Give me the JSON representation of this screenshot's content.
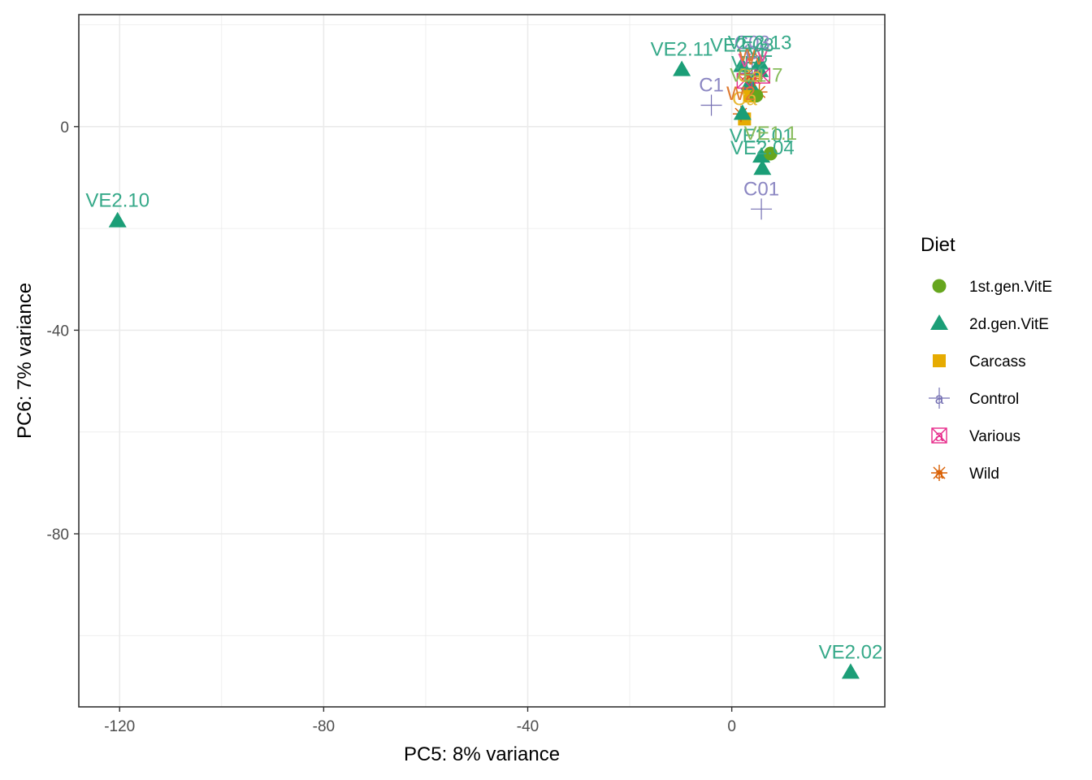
{
  "chart_data": {
    "type": "scatter",
    "xlabel": "PC5: 8% variance",
    "ylabel": "PC6: 7% variance",
    "xlim": [
      -128,
      30
    ],
    "ylim": [
      -114,
      22
    ],
    "x_ticks": [
      -120,
      -80,
      -40,
      0
    ],
    "y_ticks": [
      0,
      -40,
      -80
    ],
    "grid": true,
    "legend": {
      "title": "Diet",
      "placement": "right",
      "entries": [
        {
          "name": "1st.gen.VitE",
          "shape": "circle",
          "color": "#66a61e"
        },
        {
          "name": "2d.gen.VitE",
          "shape": "triangle",
          "color": "#1b9e77"
        },
        {
          "name": "Carcass",
          "shape": "square",
          "color": "#e6ab02"
        },
        {
          "name": "Control",
          "shape": "plus",
          "color": "#7570b3"
        },
        {
          "name": "Various",
          "shape": "boxx",
          "color": "#e7298a"
        },
        {
          "name": "Wild",
          "shape": "asterisk",
          "color": "#d95f02"
        }
      ]
    },
    "points": [
      {
        "x": -120.4,
        "y": -18.5,
        "diet": "2d.gen.VitE",
        "label": "VE2.10"
      },
      {
        "x": 23.3,
        "y": -107.2,
        "diet": "2d.gen.VitE",
        "label": "VE2.02"
      },
      {
        "x": -9.8,
        "y": 11.2,
        "diet": "2d.gen.VitE",
        "label": "VE2.11"
      },
      {
        "x": 5.8,
        "y": -16.2,
        "diet": "Control",
        "label": "C01"
      },
      {
        "x": 6.0,
        "y": -8.2,
        "diet": "2d.gen.VitE",
        "label": "VE2.04"
      },
      {
        "x": 5.8,
        "y": -5.8,
        "diet": "2d.gen.VitE",
        "label": "VE2.01"
      },
      {
        "x": 7.6,
        "y": -5.3,
        "diet": "1st.gen.VitE",
        "label": "VE1.1"
      },
      {
        "x": 2.5,
        "y": 1.5,
        "diet": "Carcass",
        "label": "Ca"
      },
      {
        "x": 1.8,
        "y": 2.5,
        "diet": "Wild",
        "label": "W2"
      },
      {
        "x": 2.1,
        "y": 2.6,
        "diet": "2d.gen.VitE",
        "label": ""
      },
      {
        "x": -4.0,
        "y": 4.2,
        "diet": "Control",
        "label": "C1"
      },
      {
        "x": 3.5,
        "y": 6.0,
        "diet": "Carcass",
        "label": "Ca"
      },
      {
        "x": 5.4,
        "y": 6.8,
        "diet": "Wild",
        "label": ""
      },
      {
        "x": 4.8,
        "y": 6.1,
        "diet": "1st.gen.VitE",
        "label": "VE1.7"
      },
      {
        "x": 3.5,
        "y": 8.5,
        "diet": "2d.gen.VitE",
        "label": "VE2"
      },
      {
        "x": 2.5,
        "y": 9.0,
        "diet": "Various",
        "label": "V"
      },
      {
        "x": 4.5,
        "y": 9.5,
        "diet": "Wild",
        "label": "W"
      },
      {
        "x": 4.0,
        "y": 10.5,
        "diet": "Control",
        "label": "C"
      },
      {
        "x": 5.5,
        "y": 11.0,
        "diet": "2d.gen.VitE",
        "label": "VE"
      },
      {
        "x": 3.0,
        "y": 10.2,
        "diet": "Wild",
        "label": "W"
      },
      {
        "x": 6.0,
        "y": 10.0,
        "diet": "Various",
        "label": "V"
      },
      {
        "x": 2.0,
        "y": 12.0,
        "diet": "2d.gen.VitE",
        "label": "VE2.08"
      },
      {
        "x": 4.0,
        "y": 12.5,
        "diet": "Control",
        "label": "C03"
      },
      {
        "x": 5.5,
        "y": 12.5,
        "diet": "2d.gen.VitE",
        "label": "VE2.13"
      }
    ]
  }
}
